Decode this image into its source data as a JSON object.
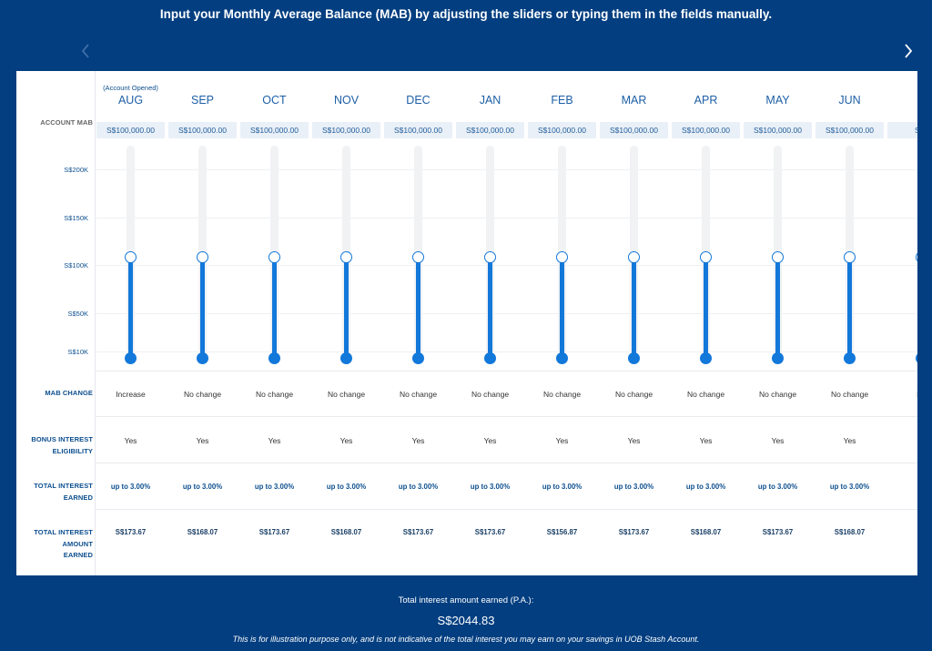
{
  "headline": "Input your Monthly Average Balance (MAB) by adjusting the sliders or typing them in the fields manually.",
  "nav": {
    "prev_icon": "chevron-left-icon",
    "next_icon": "chevron-right-icon"
  },
  "row_labels": {
    "account_mab": "ACCOUNT MAB",
    "mab_change": "MAB CHANGE",
    "bonus_line1": "BONUS INTEREST",
    "bonus_line2": "ELIGIBILITY",
    "total_interest_line1": "TOTAL INTEREST",
    "total_interest_line2": "EARNED",
    "amount_line1": "TOTAL INTEREST",
    "amount_line2": "AMOUNT",
    "amount_line3": "EARNED"
  },
  "y_ticks": [
    "S$200K",
    "S$150K",
    "S$100K",
    "S$50K",
    "S$10K"
  ],
  "slider_scale": {
    "min": 0,
    "max": 200000
  },
  "account_opened_note": "(Account Opened)",
  "months": [
    {
      "name": "AUG",
      "mab": "S$100,000.00",
      "value": 100000,
      "change": "Increase",
      "bonus": "Yes",
      "rate": "up to 3.00%",
      "amount": "S$173.67"
    },
    {
      "name": "SEP",
      "mab": "S$100,000.00",
      "value": 100000,
      "change": "No change",
      "bonus": "Yes",
      "rate": "up to 3.00%",
      "amount": "S$168.07"
    },
    {
      "name": "OCT",
      "mab": "S$100,000.00",
      "value": 100000,
      "change": "No change",
      "bonus": "Yes",
      "rate": "up to 3.00%",
      "amount": "S$173.67"
    },
    {
      "name": "NOV",
      "mab": "S$100,000.00",
      "value": 100000,
      "change": "No change",
      "bonus": "Yes",
      "rate": "up to 3.00%",
      "amount": "S$168.07"
    },
    {
      "name": "DEC",
      "mab": "S$100,000.00",
      "value": 100000,
      "change": "No change",
      "bonus": "Yes",
      "rate": "up to 3.00%",
      "amount": "S$173.67"
    },
    {
      "name": "JAN",
      "mab": "S$100,000.00",
      "value": 100000,
      "change": "No change",
      "bonus": "Yes",
      "rate": "up to 3.00%",
      "amount": "S$173.67"
    },
    {
      "name": "FEB",
      "mab": "S$100,000.00",
      "value": 100000,
      "change": "No change",
      "bonus": "Yes",
      "rate": "up to 3.00%",
      "amount": "S$156.87"
    },
    {
      "name": "MAR",
      "mab": "S$100,000.00",
      "value": 100000,
      "change": "No change",
      "bonus": "Yes",
      "rate": "up to 3.00%",
      "amount": "S$173.67"
    },
    {
      "name": "APR",
      "mab": "S$100,000.00",
      "value": 100000,
      "change": "No change",
      "bonus": "Yes",
      "rate": "up to 3.00%",
      "amount": "S$168.07"
    },
    {
      "name": "MAY",
      "mab": "S$100,000.00",
      "value": 100000,
      "change": "No change",
      "bonus": "Yes",
      "rate": "up to 3.00%",
      "amount": "S$173.67"
    },
    {
      "name": "JUN",
      "mab": "S$100,000.00",
      "value": 100000,
      "change": "No change",
      "bonus": "Yes",
      "rate": "up to 3.00%",
      "amount": "S$168.07"
    },
    {
      "name": "",
      "mab": "S$1",
      "value": 100000,
      "change": "No",
      "bonus": "",
      "rate": "up",
      "amount": "S"
    }
  ],
  "footer": {
    "label": "Total interest amount earned (P.A.):",
    "total": "S$2044.83",
    "note": "This is for illustration purpose only, and is not indicative of the total interest you may earn on your savings in UOB Stash Account."
  }
}
